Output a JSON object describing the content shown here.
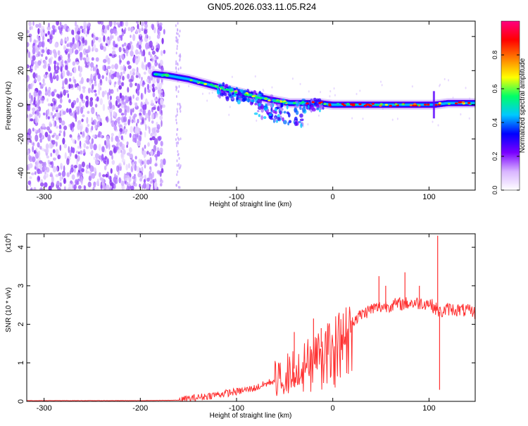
{
  "title": "GN05.2026.033.11.05.R24",
  "chart_data": [
    {
      "type": "heatmap",
      "xlabel": "Height of straight line (km)",
      "ylabel": "Frequency (Hz)",
      "xlim": [
        -318,
        148
      ],
      "ylim": [
        -50,
        49
      ],
      "xticks": [
        -300,
        -200,
        -100,
        0,
        100
      ],
      "yticks": [
        -40,
        -20,
        0,
        20,
        40
      ],
      "colorbar": {
        "label": "Normalized spectral amplitude",
        "range": [
          0,
          1
        ],
        "ticks": [
          "0.0",
          "0.2",
          "0.4",
          "0.6",
          "0.8"
        ],
        "colors": [
          "#ffffff",
          "#d8b4ff",
          "#7a00ff",
          "#0000ff",
          "#00c8ff",
          "#00ff66",
          "#ffff00",
          "#ff8000",
          "#ff0000",
          "#ff0080"
        ]
      },
      "ridge": {
        "x": [
          -185,
          -170,
          -150,
          -130,
          -110,
          -95,
          -80,
          -65,
          -55,
          -45,
          -30,
          -15,
          0,
          20,
          50,
          80,
          105,
          120,
          148
        ],
        "y": [
          18,
          17,
          15,
          12,
          9,
          7,
          5,
          3,
          2,
          1,
          1,
          1,
          0,
          0,
          0,
          0,
          0,
          1,
          1
        ]
      }
    },
    {
      "type": "line",
      "xlabel": "Height of straight line (km)",
      "ylabel": "SNR (10 * v/v)",
      "multiplier_label": "(x10",
      "multiplier_exp": "4",
      "multiplier_close": ")",
      "xlim": [
        -318,
        148
      ],
      "ylim": [
        0,
        4.35
      ],
      "xticks": [
        -300,
        -200,
        -100,
        0,
        100
      ],
      "yticks": [
        0,
        1,
        2,
        3,
        4
      ],
      "color": "#ff3030",
      "envelope": {
        "x": [
          -318,
          -200,
          -160,
          -140,
          -120,
          -100,
          -80,
          -60,
          -40,
          -20,
          0,
          20,
          40,
          60,
          80,
          100,
          105,
          112,
          120,
          140,
          148
        ],
        "y": [
          0.02,
          0.02,
          0.03,
          0.1,
          0.18,
          0.25,
          0.35,
          0.55,
          0.85,
          1.25,
          1.65,
          2.1,
          2.4,
          2.5,
          2.55,
          2.55,
          2.45,
          2.3,
          2.4,
          2.35,
          2.3
        ]
      },
      "spikes": [
        {
          "x": -40,
          "y": 1.8
        },
        {
          "x": -20,
          "y": 2.15
        },
        {
          "x": -12,
          "y": 1.9
        },
        {
          "x": 48,
          "y": 3.25
        },
        {
          "x": 55,
          "y": 3.0
        },
        {
          "x": 75,
          "y": 3.35
        },
        {
          "x": 90,
          "y": 3.0
        },
        {
          "x": 109,
          "y": 4.3
        },
        {
          "x": 111,
          "y": 0.3
        }
      ]
    }
  ]
}
